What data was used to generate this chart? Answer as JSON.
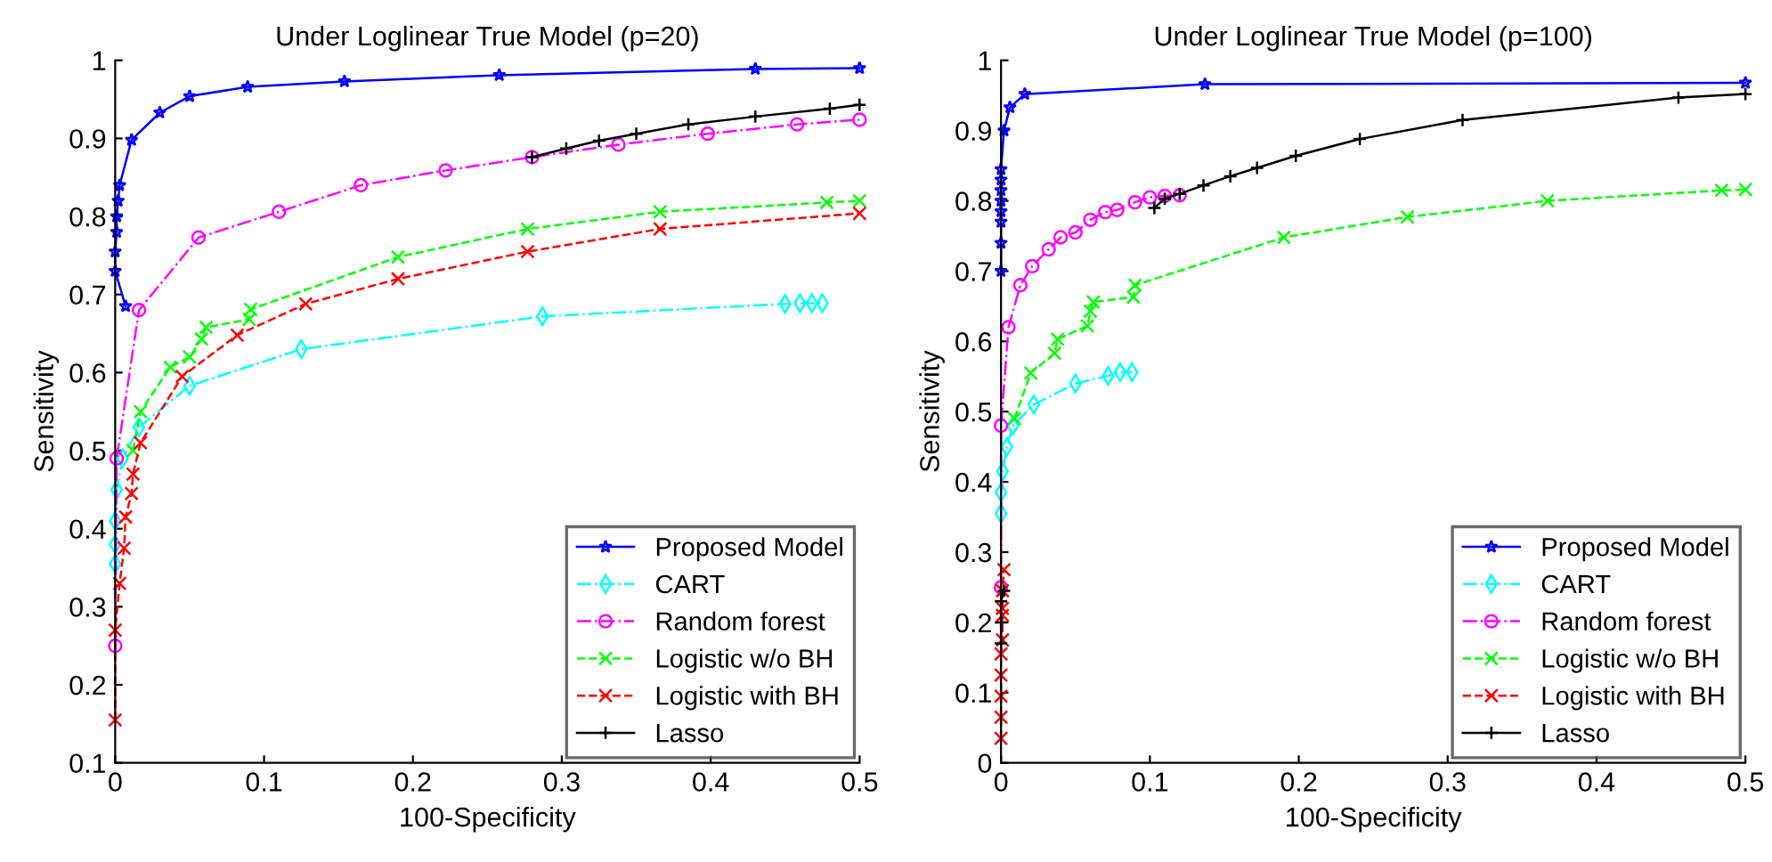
{
  "chart_data": [
    {
      "type": "line",
      "title": "Under Loglinear True Model (p=20)",
      "xlabel": "100-Specificity",
      "ylabel": "Sensitivity",
      "xlim": [
        0,
        0.5
      ],
      "ylim": [
        0.1,
        1
      ],
      "xticks": [
        0,
        0.1,
        0.2,
        0.3,
        0.4,
        0.5
      ],
      "yticks": [
        0.1,
        0.2,
        0.3,
        0.4,
        0.5,
        0.6,
        0.7,
        0.8,
        0.9,
        1
      ],
      "grid": false,
      "legend": "bottom right",
      "series": [
        {
          "name": "Proposed Model",
          "color": "#0000ff",
          "marker": "star",
          "line_style": "solid",
          "x": [
            0.007,
            0,
            0,
            0.001,
            0.001,
            0.002,
            0.003,
            0.011,
            0.03,
            0.05,
            0.089,
            0.154,
            0.258,
            0.43,
            0.5
          ],
          "values": [
            0.685,
            0.73,
            0.755,
            0.78,
            0.8,
            0.82,
            0.84,
            0.898,
            0.933,
            0.954,
            0.966,
            0.973,
            0.981,
            0.989,
            0.99
          ]
        },
        {
          "name": "CART",
          "color": "#00ffff",
          "marker": "diamond",
          "line_style": "dashdot",
          "x": [
            0,
            0,
            0,
            0.001,
            0.005,
            0.016,
            0.05,
            0.125,
            0.287,
            0.45,
            0.46,
            0.468,
            0.475
          ],
          "values": [
            0.355,
            0.38,
            0.41,
            0.45,
            0.49,
            0.53,
            0.583,
            0.63,
            0.672,
            0.688,
            0.689,
            0.689,
            0.689
          ]
        },
        {
          "name": "Random forest",
          "color": "#ff00ff",
          "marker": "circle",
          "line_style": "dashdot",
          "x": [
            0,
            0.001,
            0.016,
            0.056,
            0.11,
            0.165,
            0.222,
            0.28,
            0.338,
            0.398,
            0.458,
            0.5
          ],
          "values": [
            0.25,
            0.49,
            0.68,
            0.773,
            0.806,
            0.84,
            0.859,
            0.876,
            0.892,
            0.906,
            0.918,
            0.924
          ]
        },
        {
          "name": "Logistic w/o BH",
          "color": "#00ff00",
          "marker": "cross",
          "line_style": "dashed",
          "x": [
            0.012,
            0.017,
            0.037,
            0.05,
            0.058,
            0.061,
            0.09,
            0.091,
            0.19,
            0.277,
            0.366,
            0.478,
            0.5
          ],
          "values": [
            0.5,
            0.55,
            0.607,
            0.62,
            0.643,
            0.658,
            0.668,
            0.681,
            0.748,
            0.784,
            0.806,
            0.818,
            0.82
          ]
        },
        {
          "name": "Logistic with BH",
          "color": "#ff0000",
          "marker": "cross",
          "line_style": "dashed",
          "x": [
            0,
            0,
            0.003,
            0.006,
            0.007,
            0.011,
            0.012,
            0.017,
            0.045,
            0.082,
            0.128,
            0.19,
            0.277,
            0.366,
            0.5
          ],
          "values": [
            0.155,
            0.27,
            0.33,
            0.375,
            0.415,
            0.445,
            0.47,
            0.51,
            0.595,
            0.648,
            0.688,
            0.72,
            0.755,
            0.784,
            0.804
          ]
        },
        {
          "name": "Lasso",
          "color": "#000000",
          "marker": "plus",
          "line_style": "solid",
          "x": [
            0.28,
            0.303,
            0.325,
            0.35,
            0.385,
            0.43,
            0.48,
            0.5
          ],
          "values": [
            0.876,
            0.887,
            0.897,
            0.906,
            0.918,
            0.928,
            0.938,
            0.943
          ]
        }
      ]
    },
    {
      "type": "line",
      "title": "Under Loglinear True Model (p=100)",
      "xlabel": "100-Specificity",
      "ylabel": "Sensitivity",
      "xlim": [
        0,
        0.5
      ],
      "ylim": [
        0,
        1
      ],
      "xticks": [
        0,
        0.1,
        0.2,
        0.3,
        0.4,
        0.5
      ],
      "yticks": [
        0,
        0.1,
        0.2,
        0.3,
        0.4,
        0.5,
        0.6,
        0.7,
        0.8,
        0.9,
        1
      ],
      "grid": false,
      "legend": "bottom right",
      "series": [
        {
          "name": "Proposed Model",
          "color": "#0000ff",
          "marker": "star",
          "line_style": "solid",
          "x": [
            0,
            0,
            0,
            0,
            0,
            0,
            0,
            0,
            0.002,
            0.006,
            0.016,
            0.137,
            0.5
          ],
          "values": [
            0.7,
            0.74,
            0.77,
            0.785,
            0.8,
            0.815,
            0.83,
            0.845,
            0.9,
            0.933,
            0.952,
            0.966,
            0.968
          ]
        },
        {
          "name": "CART",
          "color": "#00ffff",
          "marker": "diamond",
          "line_style": "dashdot",
          "x": [
            0,
            0,
            0.001,
            0.004,
            0.008,
            0.022,
            0.05,
            0.072,
            0.08,
            0.088
          ],
          "values": [
            0.355,
            0.385,
            0.415,
            0.45,
            0.48,
            0.51,
            0.54,
            0.551,
            0.556,
            0.556
          ]
        },
        {
          "name": "Random forest",
          "color": "#ff00ff",
          "marker": "circle",
          "line_style": "dashdot",
          "x": [
            0,
            0,
            0.005,
            0.013,
            0.021,
            0.032,
            0.04,
            0.05,
            0.06,
            0.07,
            0.078,
            0.09,
            0.1,
            0.11,
            0.12
          ],
          "values": [
            0.25,
            0.48,
            0.62,
            0.68,
            0.707,
            0.731,
            0.748,
            0.755,
            0.773,
            0.784,
            0.787,
            0.798,
            0.805,
            0.807,
            0.808
          ]
        },
        {
          "name": "Logistic w/o BH",
          "color": "#00ff00",
          "marker": "cross",
          "line_style": "dashed",
          "x": [
            0.009,
            0.02,
            0.036,
            0.038,
            0.058,
            0.06,
            0.062,
            0.089,
            0.09,
            0.19,
            0.273,
            0.367,
            0.484,
            0.5
          ],
          "values": [
            0.49,
            0.555,
            0.583,
            0.603,
            0.622,
            0.643,
            0.656,
            0.663,
            0.68,
            0.748,
            0.777,
            0.8,
            0.815,
            0.816
          ]
        },
        {
          "name": "Logistic with BH",
          "color": "#ff0000",
          "marker": "cross",
          "line_style": "dashed",
          "x": [
            0,
            0,
            0,
            0,
            0,
            0.001,
            0.001,
            0.001,
            0.001,
            0.002
          ],
          "values": [
            0.035,
            0.065,
            0.095,
            0.125,
            0.155,
            0.175,
            0.21,
            0.22,
            0.245,
            0.275
          ]
        },
        {
          "name": "Lasso",
          "color": "#000000",
          "marker": "plus",
          "line_style": "solid",
          "x": [
            0,
            0,
            0,
            0.002,
            0.05,
            0.103,
            0.11,
            0.12,
            0.136,
            0.154,
            0.172,
            0.198,
            0.241,
            0.31,
            0.455,
            0.5
          ],
          "values": [
            0.17,
            0.2,
            0.23,
            0.245,
            null,
            0.79,
            0.803,
            0.81,
            0.822,
            0.835,
            0.847,
            0.864,
            0.888,
            0.915,
            0.947,
            0.952
          ]
        }
      ]
    }
  ]
}
